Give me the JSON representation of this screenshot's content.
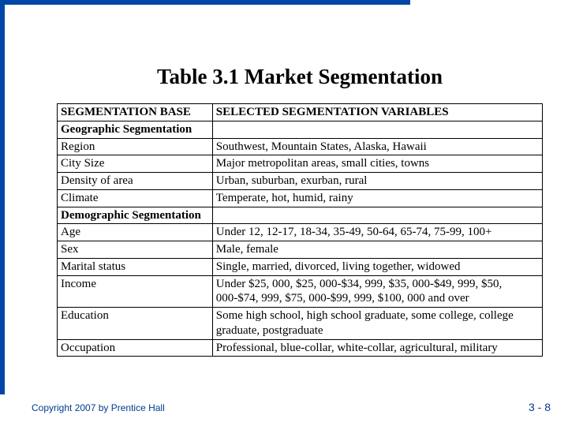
{
  "layout": {
    "blue_bar_top_width": 520,
    "blue_bar_left_height": 500,
    "blue_color": "#0046a8",
    "footer_color": "#003b8e"
  },
  "title": "Table 3.1  Market Segmentation",
  "table": {
    "header": {
      "base": "SEGMENTATION BASE",
      "vars": "SELECTED SEGMENTATION VARIABLES"
    },
    "rows": [
      {
        "type": "section",
        "base": "Geographic Segmentation",
        "vars": ""
      },
      {
        "type": "data",
        "base": "Region",
        "vars": "Southwest, Mountain States, Alaska, Hawaii"
      },
      {
        "type": "data",
        "base": "City Size",
        "vars": "Major metropolitan areas, small cities, towns"
      },
      {
        "type": "data",
        "base": "Density of area",
        "vars": "Urban, suburban, exurban, rural"
      },
      {
        "type": "data",
        "base": "Climate",
        "vars": "Temperate, hot, humid, rainy"
      },
      {
        "type": "section",
        "base": "Demographic Segmentation",
        "vars": ""
      },
      {
        "type": "data",
        "base": "Age",
        "vars": "Under 12, 12-17, 18-34, 35-49, 50-64, 65-74, 75-99, 100+"
      },
      {
        "type": "data",
        "base": "Sex",
        "vars": "Male, female"
      },
      {
        "type": "data",
        "base": "Marital status",
        "vars": "Single, married, divorced, living together, widowed"
      },
      {
        "type": "data",
        "base": "Income",
        "vars": "Under $25, 000, $25, 000-$34, 999, $35, 000-$49, 999, $50, 000-$74, 999, $75, 000-$99, 999, $100, 000 and over"
      },
      {
        "type": "data",
        "base": "Education",
        "vars": "Some high school, high school graduate, some college, college graduate, postgraduate"
      },
      {
        "type": "data",
        "base": "Occupation",
        "vars": "Professional, blue-collar, white-collar, agricultural, military"
      }
    ]
  },
  "footer": {
    "copyright": "Copyright 2007 by Prentice Hall",
    "pagenum": "3 - 8"
  }
}
